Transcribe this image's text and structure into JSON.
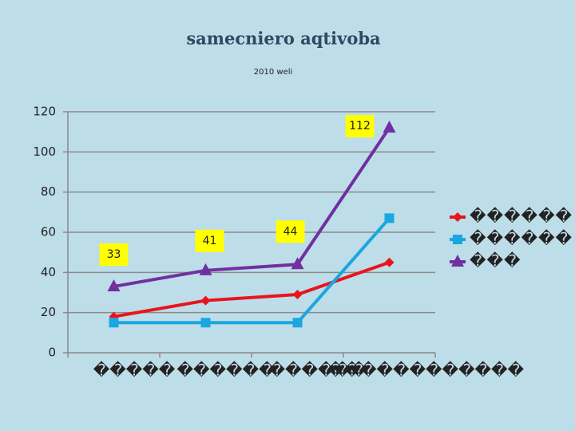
{
  "chart_data": {
    "type": "line",
    "title": "samecniero aqtivoba",
    "subtitle": "2010 weli",
    "categories": [
      "�����",
      "������",
      "������",
      "������������"
    ],
    "series": [
      {
        "name": "������",
        "color": "#e8141c",
        "marker": "diamond",
        "values": [
          18,
          26,
          29,
          45
        ]
      },
      {
        "name": "������",
        "color": "#1aa6e0",
        "marker": "square",
        "values": [
          15,
          15,
          15,
          67
        ]
      },
      {
        "name": "���",
        "color": "#7030a0",
        "marker": "triangle",
        "values": [
          33,
          41,
          44,
          112
        ],
        "data_labels": true
      }
    ],
    "ylim": [
      0,
      120
    ],
    "yticks": [
      0,
      20,
      40,
      60,
      80,
      100,
      120
    ],
    "grid": true,
    "legend": "right"
  }
}
